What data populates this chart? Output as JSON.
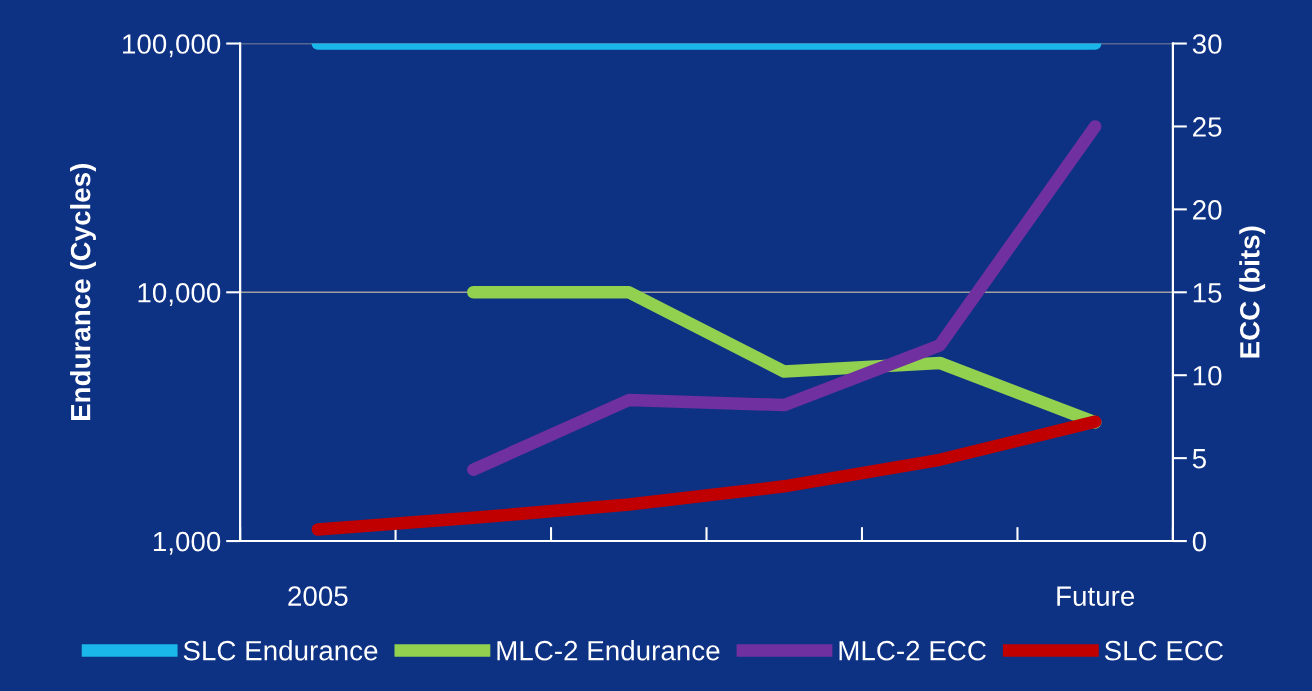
{
  "chart_data": {
    "type": "line",
    "categories": [
      "2005",
      null,
      null,
      null,
      null,
      "Future"
    ],
    "ylabel": "Endurance (Cycles)",
    "y2label": "ECC (bits)",
    "log": "y",
    "ylim": [
      1000,
      100000
    ],
    "yticks": [
      {
        "value": 1000,
        "label": "1,000"
      },
      {
        "value": 10000,
        "label": "10,000"
      },
      {
        "value": 100000,
        "label": "100,000"
      }
    ],
    "y2lim": [
      0,
      30
    ],
    "y2ticks": [
      0,
      5,
      10,
      15,
      20,
      25,
      30
    ],
    "grid": "y",
    "legend": "bottom",
    "line_style": "solid",
    "marker": "none",
    "series": [
      {
        "name": "SLC Endurance",
        "color": "#1ab7ea",
        "values": [
          100000,
          100000,
          100000,
          100000,
          100000,
          100000
        ]
      },
      {
        "name": "MLC-2 Endurance",
        "color": "#92d050",
        "values": [
          null,
          10000,
          10000,
          4800,
          5200,
          3000
        ]
      },
      {
        "name": "MLC-2 ECC",
        "color": "#7030a0",
        "axis": "y2",
        "values": [
          null,
          4.3,
          8.5,
          8.2,
          11.8,
          25
        ]
      },
      {
        "name": "SLC ECC",
        "color": "#c00000",
        "axis": "y2",
        "values": [
          0.7,
          1.4,
          2.2,
          3.3,
          4.9,
          7.2
        ]
      }
    ]
  }
}
